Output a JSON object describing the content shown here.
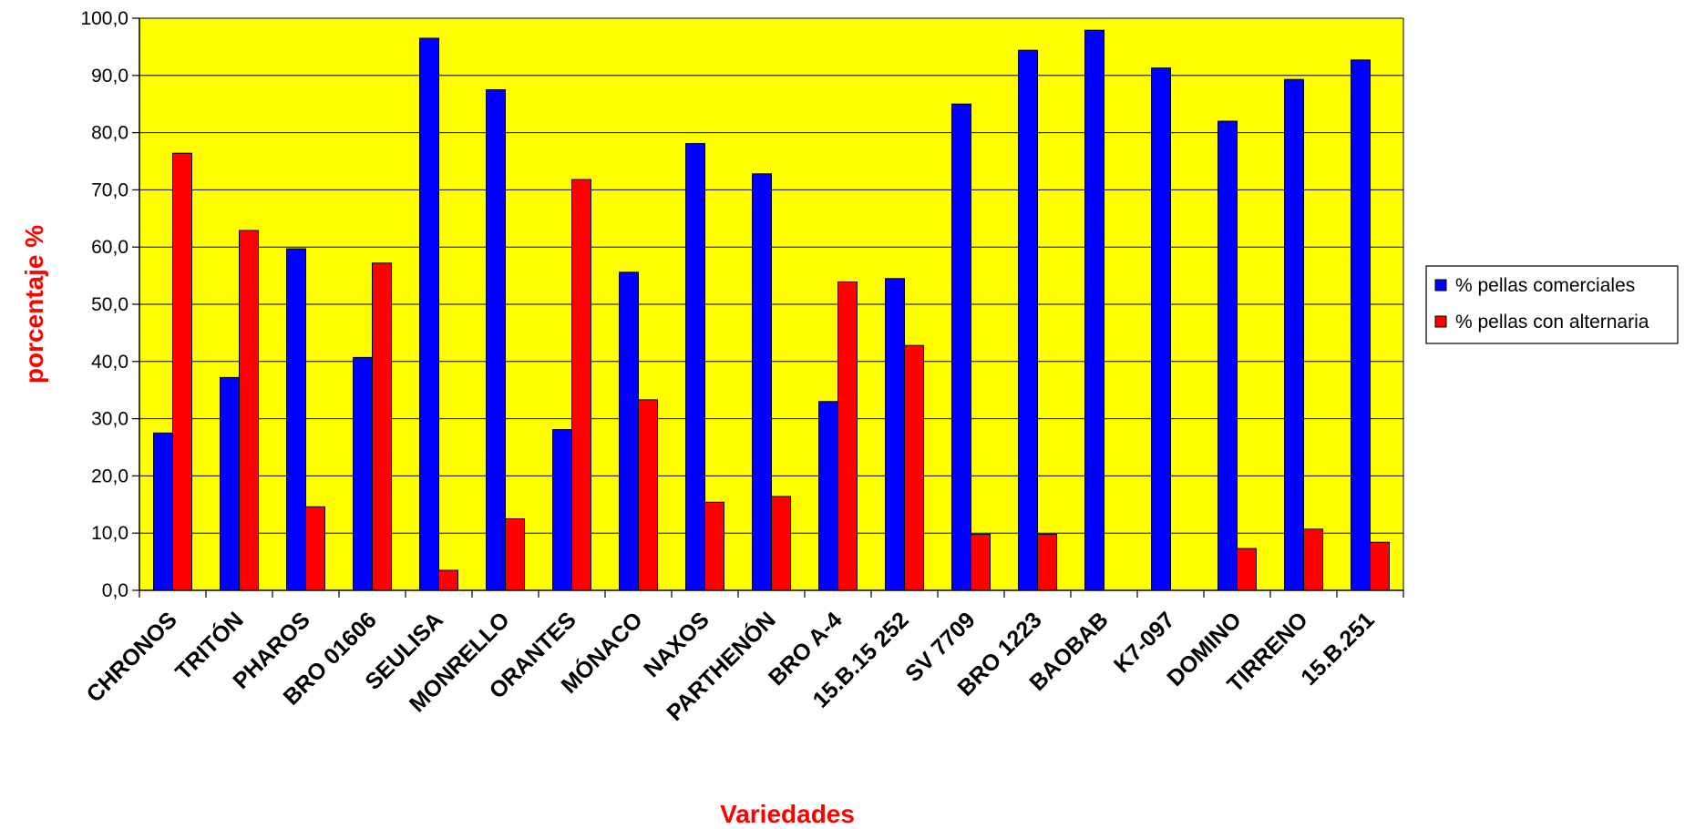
{
  "chart_data": {
    "type": "bar",
    "title": "",
    "xlabel": "Variedades",
    "ylabel": "porcentaje %",
    "ylim": [
      0,
      100
    ],
    "yticks": [
      "0,0",
      "10,0",
      "20,0",
      "30,0",
      "40,0",
      "50,0",
      "60,0",
      "70,0",
      "80,0",
      "90,0",
      "100,0"
    ],
    "grid": true,
    "legend_position": "right",
    "categories": [
      "CHRONOS",
      "TRITÓN",
      "PHAROS",
      "BRO 01606",
      "SEULISA",
      "MONRELLO",
      "ORANTES",
      "MÓNACO",
      "NAXOS",
      "PARTHENÓN",
      "BRO  A-4",
      "15.B.15 252",
      "SV 7709",
      "BRO 1223",
      "BAOBAB",
      "K7-097",
      "DOMINO",
      "TIRRENO",
      "15.B.251"
    ],
    "series": [
      {
        "name": "% pellas comerciales",
        "color": "#0000ff",
        "values": [
          27.5,
          37.2,
          59.7,
          40.7,
          96.5,
          87.5,
          28.1,
          55.6,
          78.1,
          72.8,
          33.0,
          54.5,
          85.0,
          94.4,
          97.9,
          91.3,
          82.0,
          89.3,
          92.7
        ]
      },
      {
        "name": "% pellas con alternaria",
        "color": "#ff0000",
        "values": [
          76.4,
          62.9,
          14.6,
          57.2,
          3.5,
          12.5,
          71.8,
          33.3,
          15.4,
          16.4,
          53.9,
          42.8,
          9.8,
          9.8,
          0.0,
          0.0,
          7.3,
          10.7,
          8.4
        ]
      }
    ],
    "colors": {
      "plot_background": "#ffff00",
      "label_color": "#ff0000"
    }
  }
}
